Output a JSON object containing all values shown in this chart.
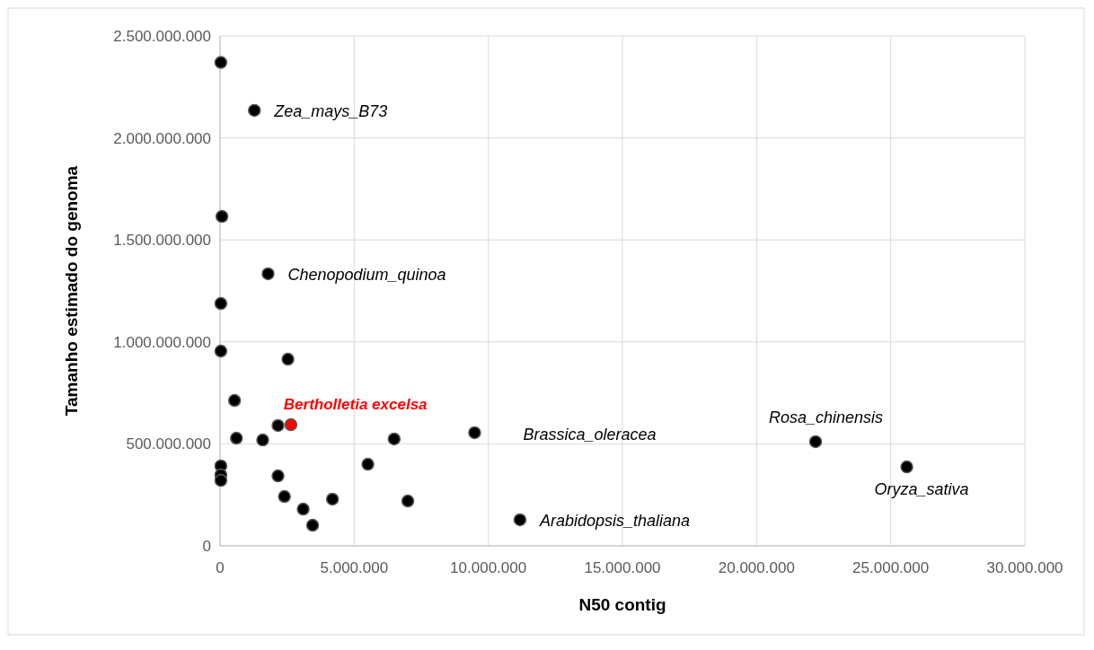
{
  "chart_data": {
    "type": "scatter",
    "xlabel": "N50 contig",
    "ylabel": "Tamanho estimado do genoma",
    "xlim": [
      0,
      30000000
    ],
    "ylim": [
      0,
      2500000000
    ],
    "xticks": [
      {
        "value": 0,
        "label": "0"
      },
      {
        "value": 5000000,
        "label": "5.000.000"
      },
      {
        "value": 10000000,
        "label": "10.000.000"
      },
      {
        "value": 15000000,
        "label": "15.000.000"
      },
      {
        "value": 20000000,
        "label": "20.000.000"
      },
      {
        "value": 25000000,
        "label": "25.000.000"
      },
      {
        "value": 30000000,
        "label": "30.000.000"
      }
    ],
    "yticks": [
      {
        "value": 0,
        "label": "0"
      },
      {
        "value": 500000000,
        "label": "500.000.000"
      },
      {
        "value": 1000000000,
        "label": "1.000.000.000"
      },
      {
        "value": 1500000000,
        "label": "1.500.000.000"
      },
      {
        "value": 2000000000,
        "label": "2.000.000.000"
      },
      {
        "value": 2500000000,
        "label": "2.500.000.000"
      }
    ],
    "grid": true,
    "marker": "circle",
    "series": [
      {
        "color": "#000000",
        "x": [
          30000,
          1280000,
          70000,
          1790000,
          30000,
          30000,
          2530000,
          540000,
          2160000,
          610000,
          1590000,
          6490000,
          9490000,
          30000,
          30000,
          30000,
          2160000,
          5510000,
          2400000,
          3100000,
          4190000,
          3450000,
          7000000,
          11180000,
          22200000,
          25600000
        ],
        "values": [
          2370000000,
          2135000000,
          1615000000,
          1334000000,
          1188000000,
          955000000,
          915000000,
          713000000,
          590000000,
          528000000,
          519000000,
          524000000,
          555000000,
          392000000,
          348000000,
          321000000,
          343000000,
          400000000,
          242000000,
          180000000,
          229000000,
          101000000,
          220000000,
          128000000,
          511000000,
          387000000
        ]
      },
      {
        "name": "Bertholletia excelsa",
        "color": "#ff0000",
        "x": [
          2640000
        ],
        "values": [
          594000000
        ]
      }
    ],
    "annotations": [
      {
        "text": "Zea_mays_B73",
        "x": 1280000,
        "y": 2135000000
      },
      {
        "text": "Chenopodium_quinoa",
        "x": 1790000,
        "y": 1334000000
      },
      {
        "text": "Brassica_oleracea",
        "x": 9490000,
        "y": 555000000
      },
      {
        "text": "Arabidopsis_thaliana",
        "x": 11180000,
        "y": 128000000
      },
      {
        "text": "Rosa_chinensis",
        "x": 22200000,
        "y": 511000000
      },
      {
        "text": "Oryza_sativa",
        "x": 25600000,
        "y": 387000000
      }
    ]
  }
}
